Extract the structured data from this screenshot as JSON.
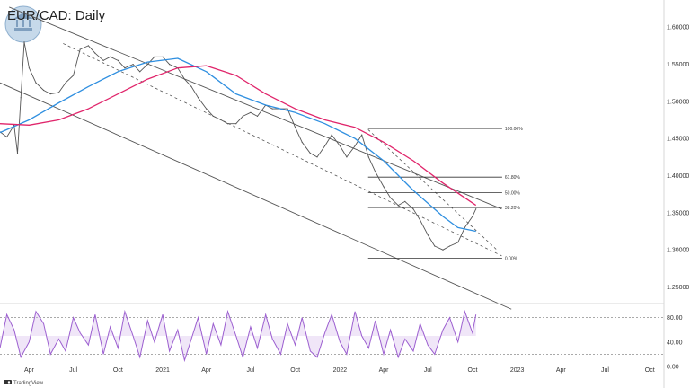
{
  "header": {
    "title": "EUR/CAD: Daily"
  },
  "brand": {
    "name": "TradingView"
  },
  "chart_data": [
    {
      "type": "line",
      "title": "EUR/CAD: Daily",
      "x_tick_labels": [
        "Apr",
        "Jul",
        "Oct",
        "2021",
        "Apr",
        "Jul",
        "Oct",
        "2022",
        "Apr",
        "Jul",
        "Oct",
        "2023",
        "Apr",
        "Jul",
        "Oct"
      ],
      "y_tick_labels": [
        "1.60000",
        "1.55000",
        "1.50000",
        "1.45000",
        "1.40000",
        "1.35000",
        "1.30000",
        "1.25000"
      ],
      "ylim": [
        1.23,
        1.6366
      ],
      "grid": false,
      "colors": {
        "price": "#555555",
        "ma_fast": "#2f8fe0",
        "ma_slow": "#e0256b",
        "channel": "#555555",
        "fib": "#333333"
      },
      "series": [
        {
          "role": "price",
          "x": [
            "2020-02-01",
            "2020-02-15",
            "2020-03-01",
            "2020-03-08",
            "2020-03-15",
            "2020-03-22",
            "2020-04-01",
            "2020-04-15",
            "2020-05-01",
            "2020-05-15",
            "2020-06-01",
            "2020-06-15",
            "2020-07-01",
            "2020-07-15",
            "2020-08-01",
            "2020-08-15",
            "2020-09-01",
            "2020-09-15",
            "2020-10-01",
            "2020-10-15",
            "2020-11-01",
            "2020-11-15",
            "2020-12-01",
            "2020-12-15",
            "2021-01-01",
            "2021-01-15",
            "2021-02-01",
            "2021-02-15",
            "2021-03-01",
            "2021-03-15",
            "2021-04-01",
            "2021-04-15",
            "2021-05-01",
            "2021-05-15",
            "2021-06-01",
            "2021-06-15",
            "2021-07-01",
            "2021-07-15",
            "2021-08-01",
            "2021-08-15",
            "2021-09-01",
            "2021-09-15",
            "2021-10-01",
            "2021-10-15",
            "2021-11-01",
            "2021-11-15",
            "2021-12-01",
            "2021-12-15",
            "2022-01-01",
            "2022-01-15",
            "2022-02-01",
            "2022-02-15",
            "2022-03-01",
            "2022-03-15",
            "2022-04-01",
            "2022-04-15",
            "2022-05-01",
            "2022-05-15",
            "2022-06-01",
            "2022-06-15",
            "2022-07-01",
            "2022-07-15",
            "2022-08-01",
            "2022-08-15",
            "2022-09-01",
            "2022-09-15",
            "2022-10-01",
            "2022-10-08"
          ],
          "values": [
            1.459,
            1.452,
            1.468,
            1.43,
            1.505,
            1.58,
            1.545,
            1.525,
            1.515,
            1.51,
            1.512,
            1.525,
            1.535,
            1.57,
            1.575,
            1.565,
            1.555,
            1.56,
            1.555,
            1.545,
            1.55,
            1.54,
            1.55,
            1.56,
            1.56,
            1.55,
            1.545,
            1.53,
            1.52,
            1.505,
            1.49,
            1.48,
            1.475,
            1.47,
            1.47,
            1.48,
            1.485,
            1.48,
            1.495,
            1.49,
            1.49,
            1.49,
            1.465,
            1.445,
            1.43,
            1.425,
            1.44,
            1.455,
            1.44,
            1.425,
            1.44,
            1.455,
            1.425,
            1.405,
            1.385,
            1.37,
            1.36,
            1.365,
            1.355,
            1.34,
            1.32,
            1.305,
            1.3,
            1.305,
            1.31,
            1.33,
            1.345,
            1.355
          ]
        },
        {
          "role": "ma_fast",
          "x": [
            "2020-02-01",
            "2020-04-01",
            "2020-06-01",
            "2020-08-01",
            "2020-10-01",
            "2020-12-01",
            "2021-02-01",
            "2021-04-01",
            "2021-06-01",
            "2021-08-01",
            "2021-10-01",
            "2021-12-01",
            "2022-02-01",
            "2022-04-01",
            "2022-06-01",
            "2022-08-01",
            "2022-09-01",
            "2022-10-08"
          ],
          "values": [
            1.458,
            1.475,
            1.498,
            1.52,
            1.54,
            1.553,
            1.558,
            1.54,
            1.51,
            1.495,
            1.485,
            1.47,
            1.45,
            1.42,
            1.38,
            1.345,
            1.33,
            1.325
          ]
        },
        {
          "role": "ma_slow",
          "x": [
            "2020-02-01",
            "2020-04-01",
            "2020-06-01",
            "2020-08-01",
            "2020-10-01",
            "2020-12-01",
            "2021-02-01",
            "2021-04-01",
            "2021-06-01",
            "2021-08-01",
            "2021-10-01",
            "2021-12-01",
            "2022-02-01",
            "2022-04-01",
            "2022-06-01",
            "2022-08-01",
            "2022-10-08"
          ],
          "values": [
            1.47,
            1.468,
            1.475,
            1.49,
            1.51,
            1.53,
            1.545,
            1.548,
            1.535,
            1.51,
            1.49,
            1.475,
            1.465,
            1.445,
            1.42,
            1.39,
            1.36
          ]
        }
      ],
      "trend_lines": [
        {
          "role": "channel_upper",
          "from": {
            "x": "2020-02-20",
            "y": 1.627
          },
          "to": {
            "x": "2022-11-30",
            "y": 1.355
          }
        },
        {
          "role": "channel_lower",
          "from": {
            "x": "2020-02-01",
            "y": 1.525
          },
          "to": {
            "x": "2022-12-20",
            "y": 1.22
          }
        },
        {
          "role": "midline_dashed",
          "from": {
            "x": "2020-06-10",
            "y": 1.578
          },
          "to": {
            "x": "2022-11-30",
            "y": 1.292
          }
        },
        {
          "role": "fib_diagonal_dashed",
          "from": {
            "x": "2022-02-28",
            "y": 1.462
          },
          "to": {
            "x": "2022-11-20",
            "y": 1.3
          }
        }
      ],
      "fib_levels": [
        {
          "label": "100.00%",
          "value": 1.4635
        },
        {
          "label": "61.80%",
          "value": 1.398
        },
        {
          "label": "50.00%",
          "value": 1.377
        },
        {
          "label": "38.20%",
          "value": 1.357
        },
        {
          "label": "0.00%",
          "value": 1.2885
        }
      ]
    },
    {
      "type": "line",
      "role": "oscillator",
      "y_tick_labels": [
        "80.00",
        "40.00",
        "0.00"
      ],
      "ylim": [
        0,
        100
      ],
      "guide_levels": [
        80,
        20
      ],
      "colors": {
        "line": "#9c5fd0",
        "fill": "#d5b8ec",
        "guide": "#777777"
      },
      "x": [
        "2020-02-01",
        "2020-02-15",
        "2020-03-01",
        "2020-03-15",
        "2020-04-01",
        "2020-04-15",
        "2020-05-01",
        "2020-05-15",
        "2020-06-01",
        "2020-06-15",
        "2020-07-01",
        "2020-07-15",
        "2020-08-01",
        "2020-08-15",
        "2020-09-01",
        "2020-09-15",
        "2020-10-01",
        "2020-10-15",
        "2020-11-01",
        "2020-11-15",
        "2020-12-01",
        "2020-12-15",
        "2021-01-01",
        "2021-01-15",
        "2021-02-01",
        "2021-02-15",
        "2021-03-01",
        "2021-03-15",
        "2021-04-01",
        "2021-04-15",
        "2021-05-01",
        "2021-05-15",
        "2021-06-01",
        "2021-06-15",
        "2021-07-01",
        "2021-07-15",
        "2021-08-01",
        "2021-08-15",
        "2021-09-01",
        "2021-09-15",
        "2021-10-01",
        "2021-10-15",
        "2021-11-01",
        "2021-11-15",
        "2021-12-01",
        "2021-12-15",
        "2022-01-01",
        "2022-01-15",
        "2022-02-01",
        "2022-02-15",
        "2022-03-01",
        "2022-03-15",
        "2022-04-01",
        "2022-04-15",
        "2022-05-01",
        "2022-05-15",
        "2022-06-01",
        "2022-06-15",
        "2022-07-01",
        "2022-07-15",
        "2022-08-01",
        "2022-08-15",
        "2022-09-01",
        "2022-09-15",
        "2022-10-01",
        "2022-10-08"
      ],
      "values": [
        30,
        85,
        60,
        15,
        40,
        90,
        70,
        20,
        45,
        25,
        80,
        55,
        35,
        85,
        20,
        65,
        30,
        90,
        50,
        15,
        75,
        40,
        85,
        25,
        60,
        10,
        45,
        80,
        20,
        70,
        35,
        90,
        50,
        15,
        65,
        30,
        85,
        45,
        20,
        70,
        35,
        80,
        25,
        15,
        55,
        85,
        40,
        20,
        90,
        50,
        30,
        75,
        20,
        60,
        15,
        45,
        25,
        70,
        35,
        20,
        60,
        80,
        40,
        90,
        55,
        85
      ]
    }
  ]
}
